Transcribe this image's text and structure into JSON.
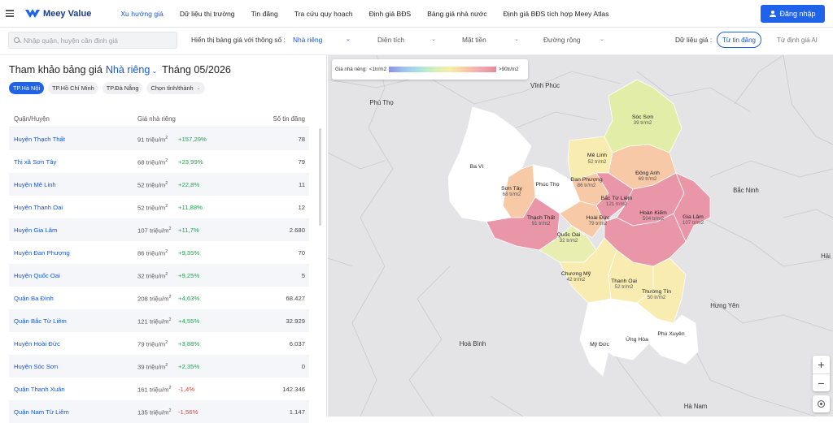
{
  "header": {
    "brand": "Meey Value",
    "nav": [
      {
        "label": "Xu hướng giá",
        "active": true
      },
      {
        "label": "Dữ liệu thị trường"
      },
      {
        "label": "Tin đăng"
      },
      {
        "label": "Tra cứu quy hoạch"
      },
      {
        "label": "Định giá BĐS"
      },
      {
        "label": "Bảng giá nhà nước"
      },
      {
        "label": "Định giá BĐS tích hợp Meey Atlas"
      }
    ],
    "login_label": "Đăng nhập"
  },
  "filters": {
    "search_placeholder": "Nhập quận, huyện cần định giá",
    "display_label": "Hiển thị bảng giá với thông số :",
    "property_type": "Nhà riêng",
    "area": "Diện tích",
    "frontage": "Mặt tiền",
    "road_width": "Đường rộng",
    "source_label": "Dữ liệu giá :",
    "source_options": [
      "Từ tin đăng",
      "Từ định giá AI"
    ]
  },
  "panel": {
    "title": "Tham khảo bảng giá",
    "type": "Nhà riêng",
    "period": "Tháng 05/2026",
    "cities": [
      "TP.Hà Nội",
      "TP.Hồ Chí Minh",
      "TP.Đà Nẵng"
    ],
    "city_select": "Chọn tỉnh/thành",
    "columns": [
      "Quận/Huyện",
      "Giá nhà riêng",
      "Số tin đăng"
    ],
    "rows": [
      {
        "name": "Huyện Thạch Thất",
        "price": "91 triệu/m",
        "change": "+157,29%",
        "dir": "up",
        "count": "78"
      },
      {
        "name": "Thị xã Sơn Tây",
        "price": "68 triệu/m",
        "change": "+23,99%",
        "dir": "up",
        "count": "79"
      },
      {
        "name": "Huyện Mê Linh",
        "price": "52 triệu/m",
        "change": "+22,8%",
        "dir": "up",
        "count": "11"
      },
      {
        "name": "Huyện Thanh Oai",
        "price": "52 triệu/m",
        "change": "+11,88%",
        "dir": "up",
        "count": "12"
      },
      {
        "name": "Huyện Gia Lâm",
        "price": "107 triệu/m",
        "change": "+11,7%",
        "dir": "up",
        "count": "2.680"
      },
      {
        "name": "Huyện Đan Phượng",
        "price": "86 triệu/m",
        "change": "+9,35%",
        "dir": "up",
        "count": "70"
      },
      {
        "name": "Huyện Quốc Oai",
        "price": "32 triệu/m",
        "change": "+9,25%",
        "dir": "up",
        "count": "5"
      },
      {
        "name": "Quận Ba Đình",
        "price": "208 triệu/m",
        "change": "+4,63%",
        "dir": "up",
        "count": "68.427"
      },
      {
        "name": "Quận Bắc Từ Liêm",
        "price": "121 triệu/m",
        "change": "+4,55%",
        "dir": "up",
        "count": "32.929"
      },
      {
        "name": "Huyện Hoài Đức",
        "price": "79 triệu/m",
        "change": "+3,88%",
        "dir": "up",
        "count": "6.037"
      },
      {
        "name": "Huyện Sóc Sơn",
        "price": "39 triệu/m",
        "change": "+2,35%",
        "dir": "up",
        "count": "0"
      },
      {
        "name": "Quận Thanh Xuân",
        "price": "161 triệu/m",
        "change": "-1,4%",
        "dir": "down",
        "count": "142.346"
      },
      {
        "name": "Quận Nam Từ Liêm",
        "price": "135 triệu/m",
        "change": "-1,56%",
        "dir": "down",
        "count": "1.147"
      }
    ]
  },
  "map": {
    "legend_label": "Giá nhà riêng:",
    "legend_min": "<1tr/m2",
    "legend_max": ">90tr/m2",
    "provinces": [
      "Vĩnh Phúc",
      "Phú Thọ",
      "Bắc Ninh",
      "Hưng Yên",
      "Hoà Bình",
      "Hà Nam",
      "Hải"
    ],
    "districts": [
      {
        "name": "Sóc Sơn",
        "price": "39 tr/m2"
      },
      {
        "name": "Mê Linh",
        "price": "52 tr/m2"
      },
      {
        "name": "Đông Anh",
        "price": "69 tr/m2"
      },
      {
        "name": "Đan Phượng",
        "price": "86 tr/m2"
      },
      {
        "name": "Bắc Từ Liêm",
        "price": "121 tr/m2"
      },
      {
        "name": "Hoàn Kiếm",
        "price": "504 tr/m2"
      },
      {
        "name": "Gia Lâm",
        "price": "107 tr/m2"
      },
      {
        "name": "Sơn Tây",
        "price": "68 tr/m2"
      },
      {
        "name": "Thạch Thất",
        "price": "91 tr/m2"
      },
      {
        "name": "Hoài Đức",
        "price": "79 tr/m2"
      },
      {
        "name": "Quốc Oai",
        "price": "32 tr/m2"
      },
      {
        "name": "Chương Mỹ",
        "price": "42 tr/m2"
      },
      {
        "name": "Thanh Oai",
        "price": "52 tr/m2"
      },
      {
        "name": "Thường Tín",
        "price": "50 tr/m2"
      },
      {
        "name": "Ba Vì",
        "price": ""
      },
      {
        "name": "Phúc Thọ",
        "price": ""
      },
      {
        "name": "Mỹ Đức",
        "price": ""
      },
      {
        "name": "Ứng Hòa",
        "price": ""
      },
      {
        "name": "Phú Xuyên",
        "price": ""
      }
    ],
    "zoom_in": "+",
    "zoom_out": "−"
  }
}
